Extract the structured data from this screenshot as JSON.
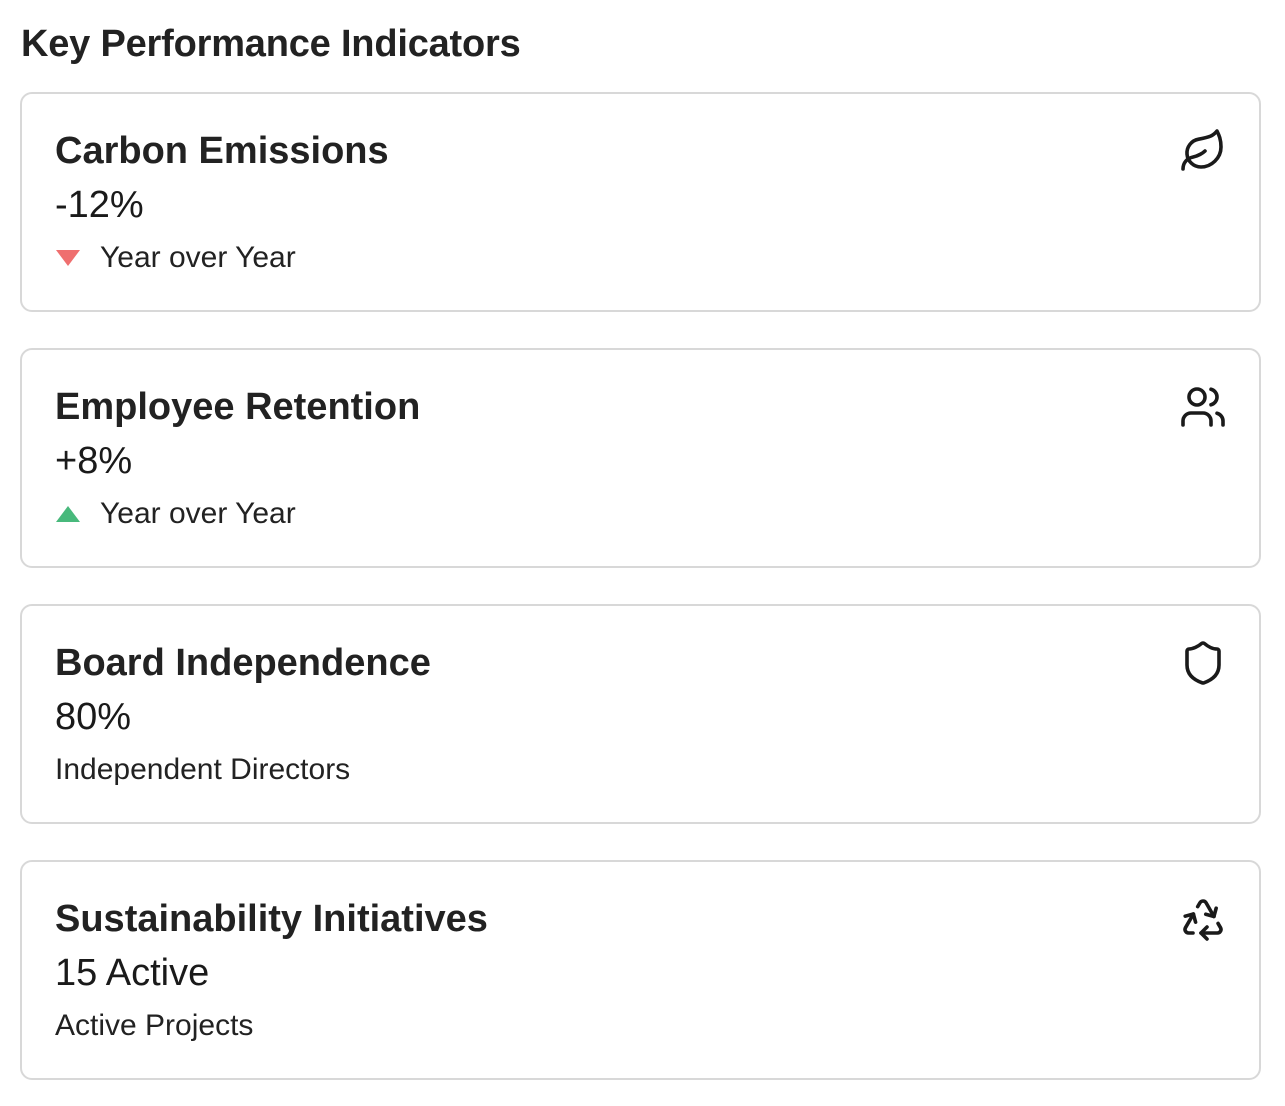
{
  "section": {
    "title": "Key Performance Indicators"
  },
  "cards": [
    {
      "title": "Carbon Emissions",
      "value": "-12%",
      "subtitle": "Year over Year",
      "trend": "down",
      "trend_color": "#ef6f6f",
      "icon": "leaf-icon"
    },
    {
      "title": "Employee Retention",
      "value": "+8%",
      "subtitle": "Year over Year",
      "trend": "up",
      "trend_color": "#48b97c",
      "icon": "users-icon"
    },
    {
      "title": "Board Independence",
      "value": "80%",
      "subtitle": "Independent Directors",
      "icon": "shield-icon"
    },
    {
      "title": "Sustainability Initiatives",
      "value": "15 Active",
      "subtitle": "Active Projects",
      "icon": "recycle-icon"
    }
  ]
}
